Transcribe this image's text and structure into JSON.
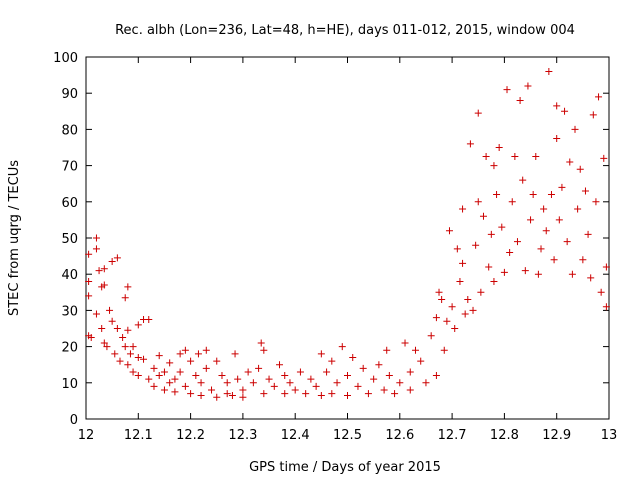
{
  "chart_data": {
    "type": "scatter",
    "title": "Rec. albh (Lon=236, Lat=48, h=HE), days 011-012, 2015, window 004",
    "xlabel": "GPS time / Days of year 2015",
    "ylabel": "STEC from uqrg / TECUs",
    "xlim": [
      12,
      13
    ],
    "ylim": [
      0,
      100
    ],
    "xticks": [
      "12",
      "12.1",
      "12.2",
      "12.3",
      "12.4",
      "12.5",
      "12.6",
      "12.7",
      "12.8",
      "12.9",
      "13"
    ],
    "yticks": [
      "0",
      "10",
      "20",
      "30",
      "40",
      "50",
      "60",
      "70",
      "80",
      "90",
      "100"
    ],
    "grid": false,
    "legend": "none",
    "marker": "+",
    "color": "#cc0000",
    "points": [
      [
        12.005,
        45.5
      ],
      [
        12.005,
        38
      ],
      [
        12.005,
        34
      ],
      [
        12.005,
        23
      ],
      [
        12.01,
        22.5
      ],
      [
        12.02,
        47
      ],
      [
        12.02,
        50
      ],
      [
        12.02,
        29
      ],
      [
        12.025,
        41
      ],
      [
        12.03,
        36.5
      ],
      [
        12.03,
        25
      ],
      [
        12.035,
        41.5
      ],
      [
        12.035,
        37
      ],
      [
        12.035,
        21
      ],
      [
        12.04,
        20
      ],
      [
        12.045,
        30
      ],
      [
        12.05,
        43.5
      ],
      [
        12.05,
        27
      ],
      [
        12.055,
        18
      ],
      [
        12.06,
        44.5
      ],
      [
        12.06,
        25
      ],
      [
        12.065,
        16
      ],
      [
        12.07,
        22.5
      ],
      [
        12.075,
        33.5
      ],
      [
        12.075,
        20
      ],
      [
        12.08,
        36.5
      ],
      [
        12.08,
        24.5
      ],
      [
        12.08,
        15
      ],
      [
        12.085,
        18
      ],
      [
        12.09,
        20
      ],
      [
        12.09,
        13
      ],
      [
        12.1,
        26
      ],
      [
        12.1,
        17
      ],
      [
        12.1,
        12
      ],
      [
        12.11,
        27.5
      ],
      [
        12.11,
        16.5
      ],
      [
        12.12,
        27.5
      ],
      [
        12.12,
        11
      ],
      [
        12.13,
        14
      ],
      [
        12.13,
        9
      ],
      [
        12.14,
        17.5
      ],
      [
        12.14,
        12
      ],
      [
        12.15,
        8
      ],
      [
        12.15,
        13
      ],
      [
        12.16,
        15.5
      ],
      [
        12.16,
        10
      ],
      [
        12.17,
        7.5
      ],
      [
        12.17,
        11
      ],
      [
        12.18,
        18
      ],
      [
        12.18,
        13
      ],
      [
        12.19,
        19
      ],
      [
        12.19,
        9
      ],
      [
        12.2,
        16
      ],
      [
        12.2,
        7
      ],
      [
        12.21,
        12
      ],
      [
        12.215,
        18
      ],
      [
        12.22,
        6.5
      ],
      [
        12.22,
        10
      ],
      [
        12.23,
        19
      ],
      [
        12.23,
        14
      ],
      [
        12.24,
        8
      ],
      [
        12.25,
        16
      ],
      [
        12.25,
        6
      ],
      [
        12.26,
        12
      ],
      [
        12.27,
        7
      ],
      [
        12.27,
        10
      ],
      [
        12.28,
        6.5
      ],
      [
        12.285,
        18
      ],
      [
        12.29,
        11
      ],
      [
        12.3,
        8
      ],
      [
        12.3,
        6
      ],
      [
        12.31,
        13
      ],
      [
        12.32,
        10
      ],
      [
        12.33,
        14
      ],
      [
        12.335,
        21
      ],
      [
        12.34,
        19
      ],
      [
        12.34,
        7
      ],
      [
        12.35,
        11
      ],
      [
        12.36,
        9
      ],
      [
        12.37,
        15
      ],
      [
        12.38,
        7
      ],
      [
        12.38,
        12
      ],
      [
        12.39,
        10
      ],
      [
        12.4,
        8
      ],
      [
        12.41,
        13
      ],
      [
        12.42,
        7
      ],
      [
        12.43,
        11
      ],
      [
        12.44,
        9
      ],
      [
        12.45,
        18
      ],
      [
        12.45,
        6.5
      ],
      [
        12.46,
        13
      ],
      [
        12.47,
        7
      ],
      [
        12.47,
        16
      ],
      [
        12.48,
        10
      ],
      [
        12.49,
        20
      ],
      [
        12.5,
        6.5
      ],
      [
        12.5,
        12
      ],
      [
        12.51,
        17
      ],
      [
        12.52,
        9
      ],
      [
        12.53,
        14
      ],
      [
        12.54,
        7
      ],
      [
        12.55,
        11
      ],
      [
        12.56,
        15
      ],
      [
        12.57,
        8
      ],
      [
        12.575,
        19
      ],
      [
        12.58,
        12
      ],
      [
        12.59,
        7
      ],
      [
        12.6,
        10
      ],
      [
        12.61,
        21
      ],
      [
        12.62,
        13
      ],
      [
        12.62,
        8
      ],
      [
        12.63,
        19
      ],
      [
        12.64,
        16
      ],
      [
        12.65,
        10
      ],
      [
        12.66,
        23
      ],
      [
        12.67,
        12
      ],
      [
        12.67,
        28
      ],
      [
        12.675,
        35
      ],
      [
        12.68,
        33
      ],
      [
        12.685,
        19
      ],
      [
        12.69,
        27
      ],
      [
        12.695,
        52
      ],
      [
        12.7,
        31
      ],
      [
        12.705,
        25
      ],
      [
        12.71,
        47
      ],
      [
        12.715,
        38
      ],
      [
        12.72,
        58
      ],
      [
        12.72,
        43
      ],
      [
        12.725,
        29
      ],
      [
        12.73,
        33
      ],
      [
        12.735,
        76
      ],
      [
        12.74,
        30
      ],
      [
        12.745,
        48
      ],
      [
        12.75,
        84.5
      ],
      [
        12.75,
        60
      ],
      [
        12.755,
        35
      ],
      [
        12.76,
        56
      ],
      [
        12.765,
        72.5
      ],
      [
        12.77,
        42
      ],
      [
        12.775,
        51
      ],
      [
        12.78,
        70
      ],
      [
        12.78,
        38
      ],
      [
        12.785,
        62
      ],
      [
        12.79,
        75
      ],
      [
        12.795,
        53
      ],
      [
        12.8,
        40.5
      ],
      [
        12.805,
        91
      ],
      [
        12.81,
        46
      ],
      [
        12.815,
        60
      ],
      [
        12.82,
        72.5
      ],
      [
        12.825,
        49
      ],
      [
        12.83,
        88
      ],
      [
        12.835,
        66
      ],
      [
        12.84,
        41
      ],
      [
        12.845,
        92
      ],
      [
        12.85,
        55
      ],
      [
        12.855,
        62
      ],
      [
        12.86,
        72.5
      ],
      [
        12.865,
        40
      ],
      [
        12.87,
        47
      ],
      [
        12.875,
        58
      ],
      [
        12.88,
        52
      ],
      [
        12.885,
        96
      ],
      [
        12.89,
        62
      ],
      [
        12.895,
        44
      ],
      [
        12.9,
        86.5
      ],
      [
        12.9,
        77.5
      ],
      [
        12.905,
        55
      ],
      [
        12.91,
        64
      ],
      [
        12.915,
        85
      ],
      [
        12.92,
        49
      ],
      [
        12.925,
        71
      ],
      [
        12.93,
        40
      ],
      [
        12.935,
        80
      ],
      [
        12.94,
        58
      ],
      [
        12.945,
        69
      ],
      [
        12.95,
        44
      ],
      [
        12.955,
        63
      ],
      [
        12.96,
        51
      ],
      [
        12.965,
        39
      ],
      [
        12.97,
        84
      ],
      [
        12.975,
        60
      ],
      [
        12.98,
        89
      ],
      [
        12.985,
        35
      ],
      [
        12.99,
        72
      ],
      [
        12.995,
        42
      ],
      [
        12.995,
        31
      ]
    ]
  }
}
